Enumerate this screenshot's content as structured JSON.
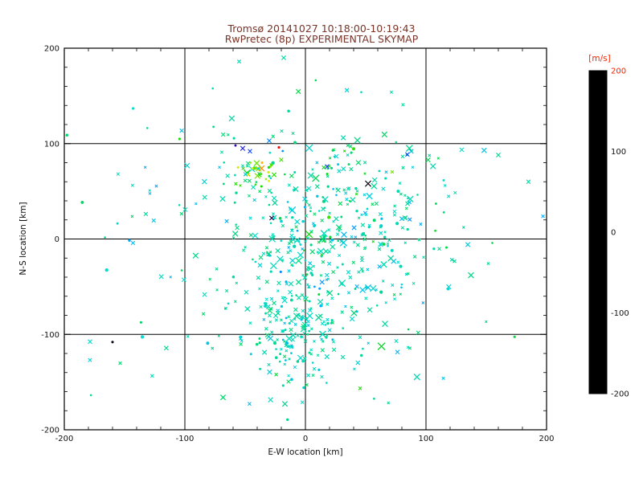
{
  "chart_data": {
    "type": "scatter",
    "title_line1": "Tromsø 20141027 10:18:00-10:19:43",
    "title_line2": "RwPretec (8p) EXPERIMENTAL SKYMAP",
    "xlabel": "E-W location [km]",
    "ylabel": "N-S location [km]",
    "xlim": [
      -200,
      200
    ],
    "ylim": [
      -200,
      200
    ],
    "x_ticks": [
      -200,
      -100,
      0,
      100,
      200
    ],
    "y_ticks": [
      -200,
      -100,
      0,
      100,
      200
    ],
    "minor_tick_step": 20,
    "grid_lines": [
      -100,
      0,
      100
    ],
    "grid_on": true,
    "legend": "none",
    "seed": 20141027,
    "marker_types": [
      "x",
      "dot"
    ],
    "colormap": [
      [
        0.0,
        "#000000"
      ],
      [
        0.06,
        "#15002e"
      ],
      [
        0.13,
        "#3b0099"
      ],
      [
        0.2,
        "#1a1aee"
      ],
      [
        0.28,
        "#0055ff"
      ],
      [
        0.36,
        "#00aaff"
      ],
      [
        0.44,
        "#00ddcc"
      ],
      [
        0.5,
        "#00d795"
      ],
      [
        0.57,
        "#00d955"
      ],
      [
        0.64,
        "#11dd00"
      ],
      [
        0.72,
        "#66e600"
      ],
      [
        0.8,
        "#e6f200"
      ],
      [
        0.86,
        "#ffcc00"
      ],
      [
        0.91,
        "#ff7700"
      ],
      [
        0.96,
        "#ff2200"
      ],
      [
        1.0,
        "#ff0000"
      ]
    ],
    "colorbar": {
      "label": "[m/s]",
      "ticks": [
        200,
        100,
        0,
        -100,
        -200
      ],
      "tick_label_colors": [
        "#ff2200",
        "#111111",
        "#111111",
        "#111111",
        "#111111"
      ],
      "range": [
        -200,
        200
      ]
    },
    "clusters": [
      {
        "name": "central-cloud",
        "cx": 5,
        "cy": -25,
        "sx": 40,
        "sy": 50,
        "count": 210,
        "v": -12,
        "vs": 22
      },
      {
        "name": "lower-center-dense",
        "cx": -8,
        "cy": -95,
        "sx": 20,
        "sy": 28,
        "count": 140,
        "v": -15,
        "vs": 18
      },
      {
        "name": "right-mid",
        "cx": 45,
        "cy": 15,
        "sx": 35,
        "sy": 30,
        "count": 85,
        "v": -8,
        "vs": 20
      },
      {
        "name": "upper-left-green",
        "cx": -42,
        "cy": 70,
        "sx": 10,
        "sy": 8,
        "count": 32,
        "v": 75,
        "vs": 35
      },
      {
        "name": "upper-band",
        "cx": 0,
        "cy": 80,
        "sx": 55,
        "sy": 18,
        "count": 48,
        "v": 5,
        "vs": 30
      },
      {
        "name": "background",
        "cx": 0,
        "cy": -10,
        "sx": 95,
        "sy": 85,
        "count": 170,
        "v": -5,
        "vs": 25
      },
      {
        "name": "far-sparse",
        "cx": 0,
        "cy": 0,
        "sx": 150,
        "sy": 120,
        "count": 42,
        "v": 0,
        "vs": 30
      }
    ],
    "highlight_points": [
      {
        "x": -22,
        "y": 96,
        "v": 195,
        "marker": "dot",
        "size": 2.4
      },
      {
        "x": -36,
        "y": 80,
        "v": 150,
        "marker": "dot",
        "size": 2.0
      },
      {
        "x": -44,
        "y": 74,
        "v": 125,
        "marker": "dot",
        "size": 2.0
      },
      {
        "x": -52,
        "y": 95,
        "v": -120,
        "marker": "x",
        "size": 2.8
      },
      {
        "x": -46,
        "y": 92,
        "v": -100,
        "marker": "x",
        "size": 2.4
      },
      {
        "x": -58,
        "y": 98,
        "v": -140,
        "marker": "dot",
        "size": 1.8
      },
      {
        "x": -30,
        "y": 103,
        "v": -70,
        "marker": "x",
        "size": 2.6
      },
      {
        "x": 52,
        "y": 58,
        "v": -190,
        "marker": "x",
        "size": 3.6
      },
      {
        "x": -160,
        "y": -108,
        "v": -185,
        "marker": "dot",
        "size": 2.2
      },
      {
        "x": -28,
        "y": 22,
        "v": -170,
        "marker": "x",
        "size": 2.6
      },
      {
        "x": 18,
        "y": 76,
        "v": -110,
        "marker": "x",
        "size": 2.4
      },
      {
        "x": 3,
        "y": 5,
        "v": 55,
        "marker": "x",
        "size": 4.2
      },
      {
        "x": -18,
        "y": 190,
        "v": -8,
        "marker": "x",
        "size": 2.6
      },
      {
        "x": -55,
        "y": 186,
        "v": -12,
        "marker": "x",
        "size": 2.2
      },
      {
        "x": 185,
        "y": 60,
        "v": -5,
        "marker": "x",
        "size": 2.4
      },
      {
        "x": 160,
        "y": 88,
        "v": 0,
        "marker": "x",
        "size": 2.6
      }
    ]
  },
  "colors": {
    "background": "#ffffff",
    "title_text": "#7a3428",
    "axis_text": "#111111",
    "tick_text": "#111111",
    "box_stroke": "#000000",
    "grid_stroke": "#000000",
    "colorbar_label": "#ff2200"
  }
}
